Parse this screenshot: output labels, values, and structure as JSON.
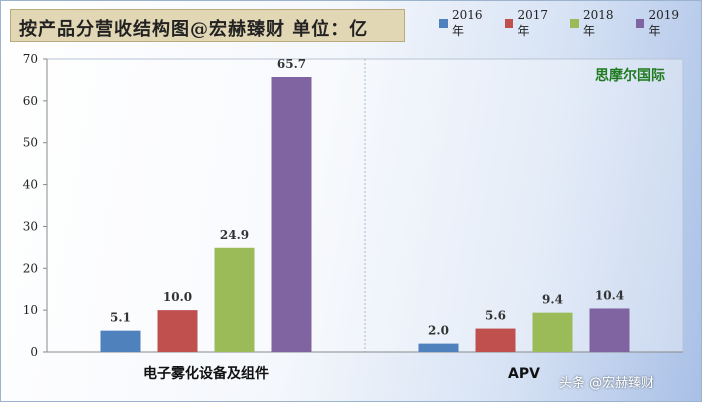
{
  "title": "按产品分营收结构图@宏赫臻财 单位：亿",
  "brand_label": "思摩尔国际",
  "watermark": "头条 @宏赫臻财",
  "chart_data": {
    "type": "bar",
    "categories": [
      "电子雾化设备及组件",
      "APV"
    ],
    "series": [
      {
        "name": "2016年",
        "color": "#4f81bd",
        "values": [
          5.1,
          2.0
        ]
      },
      {
        "name": "2017年",
        "color": "#c0504d",
        "values": [
          10.0,
          5.6
        ]
      },
      {
        "name": "2018年",
        "color": "#9bbb59",
        "values": [
          24.9,
          9.4
        ]
      },
      {
        "name": "2019年",
        "color": "#8064a2",
        "values": [
          65.7,
          10.4
        ]
      }
    ],
    "data_labels": [
      [
        "5.1",
        "10.0",
        "24.9",
        "65.7"
      ],
      [
        "2.0",
        "5.6",
        "9.4",
        "10.4"
      ]
    ],
    "yticks": [
      "0",
      "10",
      "20",
      "30",
      "40",
      "50",
      "60",
      "70"
    ],
    "ylim": [
      0,
      70
    ],
    "legend_position": "top-right",
    "grid": false
  }
}
